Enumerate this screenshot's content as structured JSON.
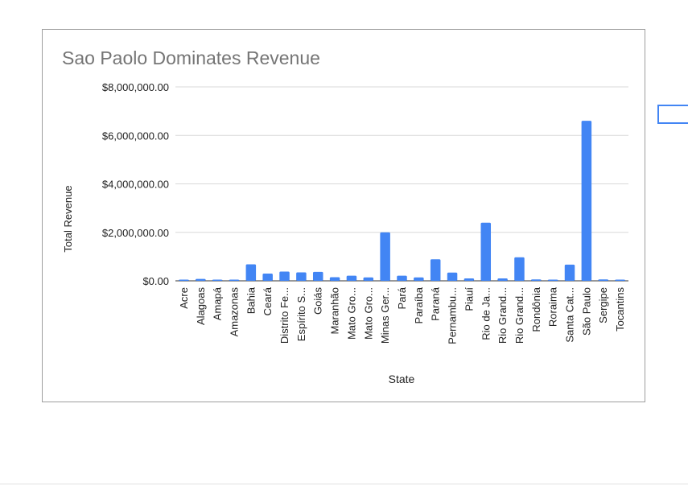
{
  "chart_data": {
    "type": "bar",
    "title": "Sao Paolo Dominates Revenue",
    "xlabel": "State",
    "ylabel": "Total Revenue",
    "ylim": [
      0,
      8000000
    ],
    "yticks": [
      "$0.00",
      "$2,000,000.00",
      "$4,000,000.00",
      "$6,000,000.00",
      "$8,000,000.00"
    ],
    "grid": true,
    "bar_color": "#4285f4",
    "categories": [
      "Acre",
      "Alagoas",
      "Amapá",
      "Amazonas",
      "Bahia",
      "Ceará",
      "Distrito Fe...",
      "Espírito S...",
      "Goiás",
      "Maranhão",
      "Mato Gro...",
      "Mato Gro...",
      "Minas Ger...",
      "Pará",
      "Paraíba",
      "Paraná",
      "Pernambu...",
      "Piauí",
      "Rio de Ja...",
      "Rio Grand...",
      "Rio Grand...",
      "Rondônia",
      "Roraima",
      "Santa Cat...",
      "São Paulo",
      "Sergipe",
      "Tocantins"
    ],
    "values": [
      20000,
      80000,
      15000,
      25000,
      680000,
      300000,
      380000,
      350000,
      370000,
      150000,
      210000,
      140000,
      2000000,
      210000,
      140000,
      890000,
      340000,
      100000,
      2400000,
      100000,
      970000,
      60000,
      10000,
      670000,
      6600000,
      60000,
      50000
    ]
  }
}
